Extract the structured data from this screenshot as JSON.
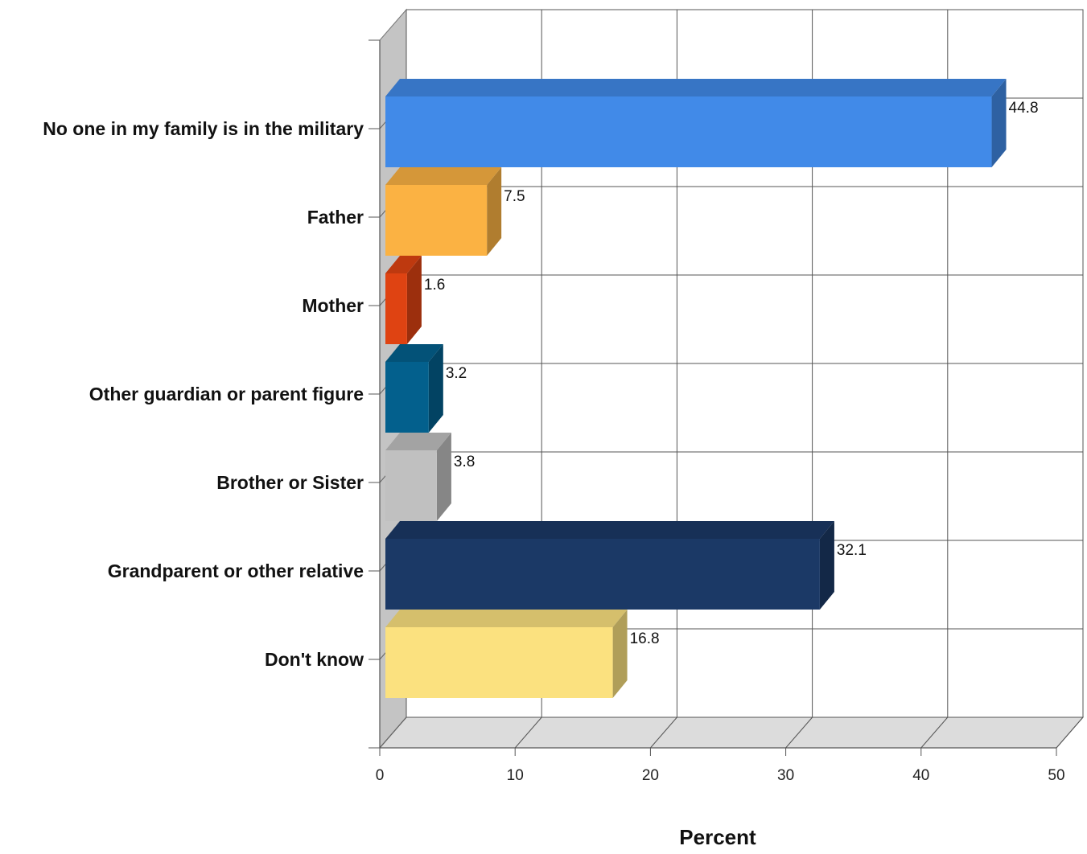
{
  "chart_data": {
    "type": "bar",
    "orientation": "horizontal",
    "style": "3d",
    "categories": [
      "No one in my family is in the military",
      "Father",
      "Mother",
      "Other guardian or parent figure",
      "Brother or Sister",
      "Grandparent or other relative",
      "Don't know"
    ],
    "values": [
      44.8,
      7.5,
      1.6,
      3.2,
      3.8,
      32.1,
      16.8
    ],
    "value_labels": [
      "44.8",
      "7.5",
      "1.6",
      "3.2",
      "3.8",
      "32.1",
      "16.8"
    ],
    "colors": [
      "#418ae8",
      "#fbb243",
      "#df4312",
      "#03608d",
      "#c0c0c0",
      "#1b3966",
      "#fbe17f"
    ],
    "xlabel": "Percent",
    "ylabel": "",
    "title": "",
    "xlim": [
      0,
      50
    ],
    "xticks": [
      0,
      10,
      20,
      30,
      40,
      50
    ],
    "xtick_labels": [
      "0",
      "10",
      "20",
      "30",
      "40",
      "50"
    ],
    "grid": true,
    "legend": "none"
  }
}
